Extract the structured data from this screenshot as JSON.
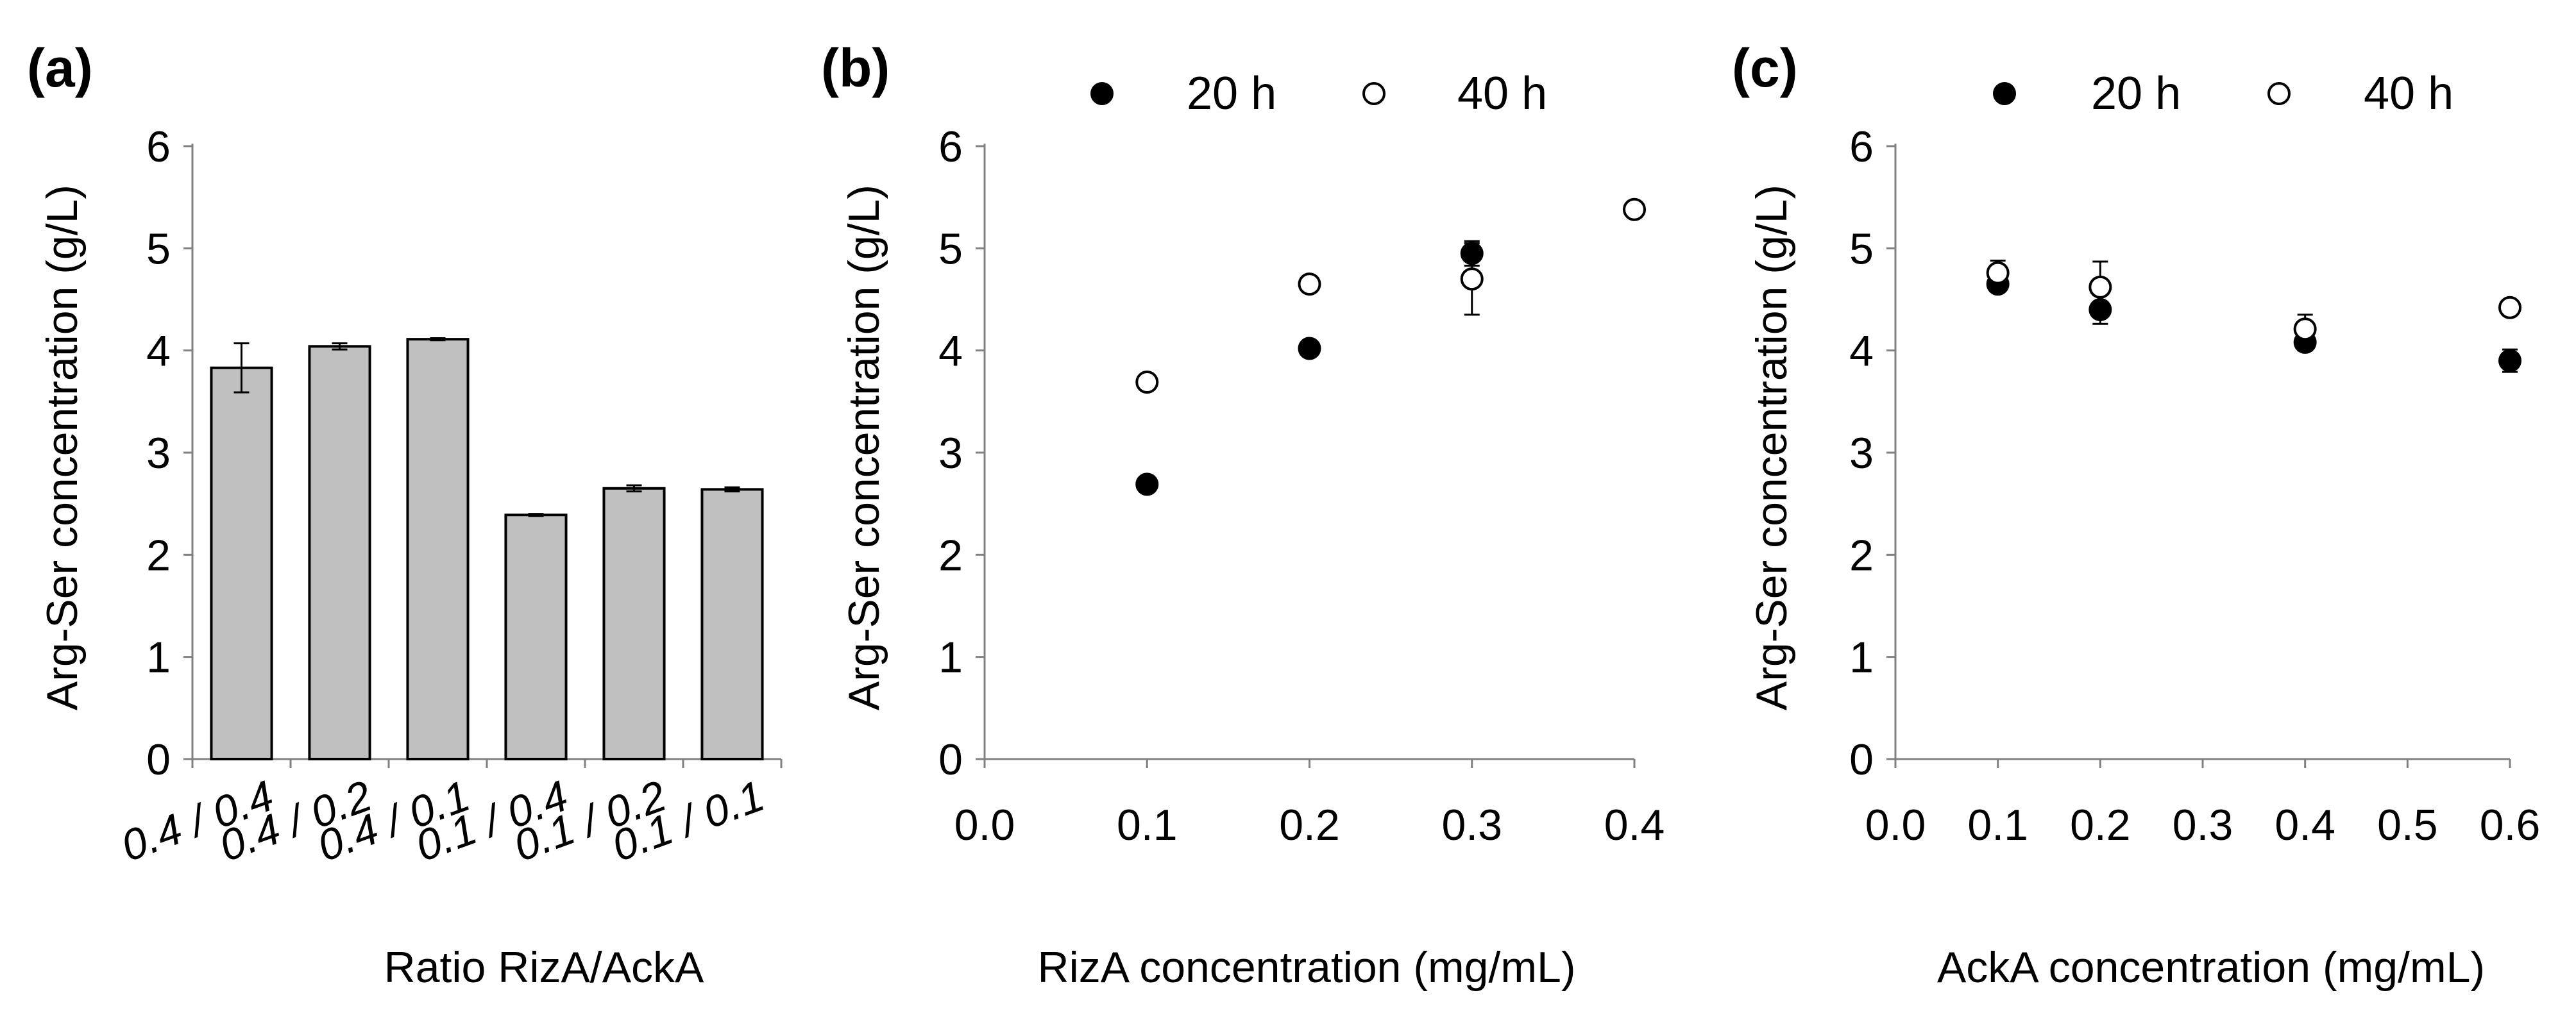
{
  "chart_data": [
    {
      "type": "bar",
      "panel_label": "(a)",
      "title": "",
      "xlabel": "Ratio RizA/AckA",
      "ylabel": "Arg-Ser concentration (g/L)",
      "ylim": [
        0,
        6
      ],
      "yticks": [
        "0",
        "1",
        "2",
        "3",
        "4",
        "5",
        "6"
      ],
      "categories": [
        "0.4 / 0.4",
        "0.4 / 0.2",
        "0.4 / 0.1",
        "0.1 / 0.4",
        "0.1 / 0.2",
        "0.1 / 0.1"
      ],
      "values": [
        3.83,
        4.04,
        4.11,
        2.39,
        2.65,
        2.64
      ],
      "errors": [
        0.24,
        0.03,
        0.01,
        0.01,
        0.03,
        0.02
      ],
      "bar_color": "#c0c0c0",
      "grid": false
    },
    {
      "type": "scatter",
      "panel_label": "(b)",
      "title": "",
      "xlabel": "RizA concentration (mg/mL)",
      "ylabel": "Arg-Ser concentration (g/L)",
      "xlim": [
        0,
        0.4
      ],
      "ylim": [
        0,
        6
      ],
      "xticks": [
        "0.0",
        "0.1",
        "0.2",
        "0.3",
        "0.4"
      ],
      "yticks": [
        "0",
        "1",
        "2",
        "3",
        "4",
        "5",
        "6"
      ],
      "legend": "top",
      "series": [
        {
          "name": "20 h",
          "marker": "filled",
          "x": [
            0.1,
            0.2,
            0.3
          ],
          "values": [
            2.69,
            4.02,
            4.95
          ],
          "errors": [
            0.06,
            0.04,
            0.12
          ]
        },
        {
          "name": "40 h",
          "marker": "open",
          "x": [
            0.1,
            0.2,
            0.3,
            0.4
          ],
          "values": [
            3.69,
            4.65,
            4.7,
            5.38
          ],
          "errors": [
            0.03,
            0.03,
            0.35,
            0.03
          ]
        }
      ],
      "grid": false
    },
    {
      "type": "scatter",
      "panel_label": "(c)",
      "title": "",
      "xlabel": "AckA concentration (mg/mL)",
      "ylabel": "Arg-Ser concentration (g/L)",
      "xlim": [
        0,
        0.6
      ],
      "ylim": [
        0,
        6
      ],
      "xticks": [
        "0.0",
        "0.1",
        "0.2",
        "0.3",
        "0.4",
        "0.5",
        "0.6"
      ],
      "yticks": [
        "0",
        "1",
        "2",
        "3",
        "4",
        "5",
        "6"
      ],
      "legend": "top",
      "series": [
        {
          "name": "20 h",
          "marker": "filled",
          "x": [
            0.1,
            0.2,
            0.4,
            0.6
          ],
          "values": [
            4.65,
            4.4,
            4.08,
            3.9
          ],
          "errors": [
            0.05,
            0.14,
            0.08,
            0.11
          ]
        },
        {
          "name": "40 h",
          "marker": "open",
          "x": [
            0.1,
            0.2,
            0.4,
            0.6
          ],
          "values": [
            4.76,
            4.62,
            4.21,
            4.42
          ],
          "errors": [
            0.12,
            0.25,
            0.14,
            0.03
          ]
        }
      ],
      "grid": false
    }
  ]
}
